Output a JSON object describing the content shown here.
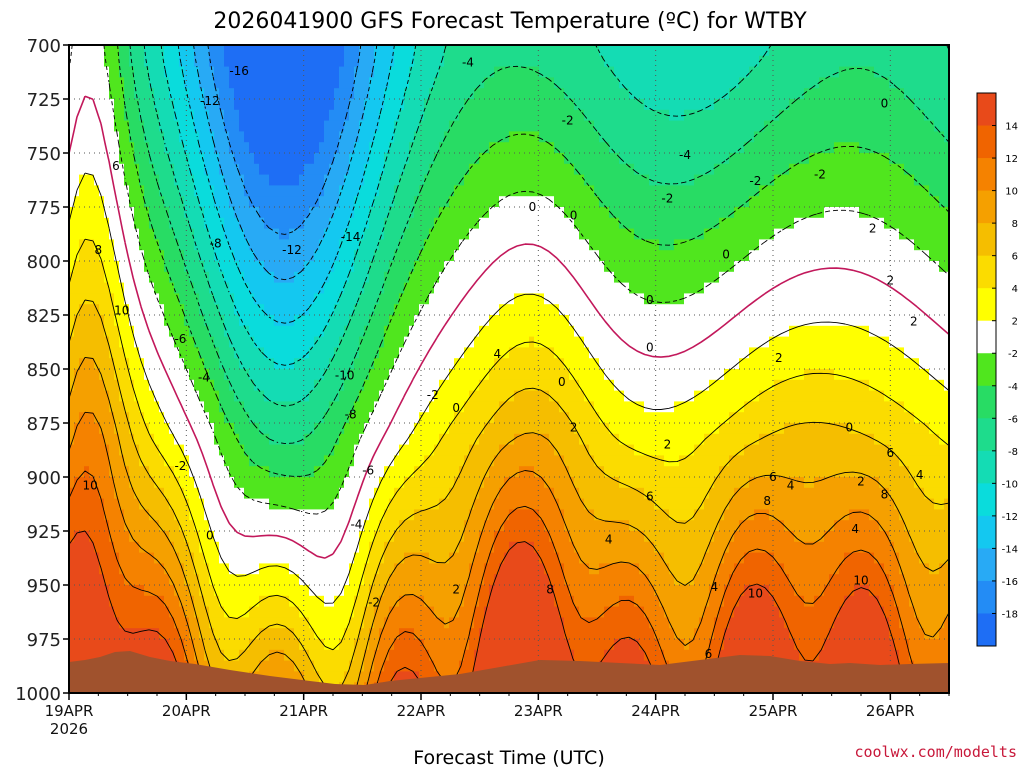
{
  "chart_data": {
    "type": "heatmap",
    "title": "2026041900 GFS Forecast Temperature (ºC) for WTBY",
    "xlabel": "Forecast Time (UTC)",
    "ylabel": "",
    "credit": "coolwx.com/modelts",
    "y_axis": {
      "reversed": true,
      "ylim": [
        1000,
        700
      ],
      "ticks": [
        "700",
        "725",
        "750",
        "775",
        "800",
        "825",
        "850",
        "875",
        "900",
        "925",
        "950",
        "975",
        "1000"
      ]
    },
    "x_axis": {
      "xlim": [
        0,
        7.5
      ],
      "units": "days since 2026-04-19 00Z",
      "ticks": [
        {
          "label": "19APR",
          "sub": "2026",
          "day": 0
        },
        {
          "label": "20APR",
          "sub": "",
          "day": 1
        },
        {
          "label": "21APR",
          "sub": "",
          "day": 2
        },
        {
          "label": "22APR",
          "sub": "",
          "day": 3
        },
        {
          "label": "23APR",
          "sub": "",
          "day": 4
        },
        {
          "label": "24APR",
          "sub": "",
          "day": 5
        },
        {
          "label": "25APR",
          "sub": "",
          "day": 6
        },
        {
          "label": "26APR",
          "sub": "",
          "day": 7
        }
      ]
    },
    "colorbar": {
      "bands": [
        {
          "lo": -20,
          "hi": -18,
          "color": "#1e6ef5"
        },
        {
          "lo": -18,
          "hi": -16,
          "color": "#238cf5"
        },
        {
          "lo": -16,
          "hi": -14,
          "color": "#28aaf5"
        },
        {
          "lo": -14,
          "hi": -12,
          "color": "#14c8f0"
        },
        {
          "lo": -12,
          "hi": -10,
          "color": "#0adcdc"
        },
        {
          "lo": -10,
          "hi": -8,
          "color": "#14dcb4"
        },
        {
          "lo": -8,
          "hi": -6,
          "color": "#1edc8c"
        },
        {
          "lo": -6,
          "hi": -4,
          "color": "#28dc64"
        },
        {
          "lo": -4,
          "hi": -2,
          "color": "#50e61e"
        },
        {
          "lo": -2,
          "hi": 2,
          "color": "#ffffff"
        },
        {
          "lo": 2,
          "hi": 4,
          "color": "#ffff00"
        },
        {
          "lo": 4,
          "hi": 6,
          "color": "#fbdc00"
        },
        {
          "lo": 6,
          "hi": 8,
          "color": "#f5be00"
        },
        {
          "lo": 8,
          "hi": 10,
          "color": "#f5a000"
        },
        {
          "lo": 10,
          "hi": 12,
          "color": "#f58200"
        },
        {
          "lo": 12,
          "hi": 14,
          "color": "#f06400"
        },
        {
          "lo": 14,
          "hi": 16,
          "color": "#e84a1a"
        }
      ],
      "tick_labels": [
        "-18",
        "-16",
        "-14",
        "-12",
        "-10",
        "-8",
        "-6",
        "-4",
        "-2",
        "2",
        "4",
        "6",
        "8",
        "10",
        "12",
        "14"
      ]
    },
    "contour_labels": [
      {
        "text": "-16",
        "day": 1.45,
        "p": 712
      },
      {
        "text": "-12",
        "day": 1.2,
        "p": 726
      },
      {
        "text": "-8",
        "day": 1.25,
        "p": 792
      },
      {
        "text": "-12",
        "day": 1.9,
        "p": 795
      },
      {
        "text": "-14",
        "day": 2.4,
        "p": 789
      },
      {
        "text": "-6",
        "day": 0.95,
        "p": 836
      },
      {
        "text": "-4",
        "day": 1.15,
        "p": 854
      },
      {
        "text": "-10",
        "day": 2.35,
        "p": 853
      },
      {
        "text": "-8",
        "day": 2.4,
        "p": 871
      },
      {
        "text": "-6",
        "day": 2.55,
        "p": 897
      },
      {
        "text": "-4",
        "day": 2.45,
        "p": 922
      },
      {
        "text": "-2",
        "day": 0.95,
        "p": 895
      },
      {
        "text": "0",
        "day": 1.2,
        "p": 927
      },
      {
        "text": "-2",
        "day": 2.6,
        "p": 958
      },
      {
        "text": "-2",
        "day": 3.1,
        "p": 862
      },
      {
        "text": "0",
        "day": 3.3,
        "p": 868
      },
      {
        "text": "-4",
        "day": 3.4,
        "p": 708
      },
      {
        "text": "-2",
        "day": 4.25,
        "p": 735
      },
      {
        "text": "0",
        "day": 3.95,
        "p": 775
      },
      {
        "text": "0",
        "day": 4.3,
        "p": 779
      },
      {
        "text": "4",
        "day": 3.65,
        "p": 843
      },
      {
        "text": "0",
        "day": 4.2,
        "p": 856
      },
      {
        "text": "2",
        "day": 4.3,
        "p": 877
      },
      {
        "text": "2",
        "day": 3.3,
        "p": 952
      },
      {
        "text": "-4",
        "day": 5.25,
        "p": 751
      },
      {
        "text": "-2",
        "day": 5.1,
        "p": 771
      },
      {
        "text": "-2",
        "day": 5.85,
        "p": 763
      },
      {
        "text": "-2",
        "day": 6.4,
        "p": 760
      },
      {
        "text": "0",
        "day": 5.6,
        "p": 797
      },
      {
        "text": "0",
        "day": 4.95,
        "p": 818
      },
      {
        "text": "0",
        "day": 4.95,
        "p": 840
      },
      {
        "text": "2",
        "day": 5.1,
        "p": 885
      },
      {
        "text": "4",
        "day": 4.6,
        "p": 929
      },
      {
        "text": "6",
        "day": 4.95,
        "p": 909
      },
      {
        "text": "8",
        "day": 4.1,
        "p": 952
      },
      {
        "text": "4",
        "day": 5.5,
        "p": 951
      },
      {
        "text": "6",
        "day": 5.45,
        "p": 982
      },
      {
        "text": "6",
        "day": 6.0,
        "p": 900
      },
      {
        "text": "4",
        "day": 6.15,
        "p": 904
      },
      {
        "text": "8",
        "day": 5.95,
        "p": 911
      },
      {
        "text": "10",
        "day": 5.85,
        "p": 954
      },
      {
        "text": "2",
        "day": 6.85,
        "p": 785
      },
      {
        "text": "0",
        "day": 6.95,
        "p": 727
      },
      {
        "text": "2",
        "day": 7.0,
        "p": 809
      },
      {
        "text": "2",
        "day": 7.2,
        "p": 828
      },
      {
        "text": "2",
        "day": 6.05,
        "p": 845
      },
      {
        "text": "0",
        "day": 6.65,
        "p": 877
      },
      {
        "text": "2",
        "day": 6.75,
        "p": 902
      },
      {
        "text": "4",
        "day": 6.7,
        "p": 924
      },
      {
        "text": "6",
        "day": 7.0,
        "p": 889
      },
      {
        "text": "4",
        "day": 7.25,
        "p": 899
      },
      {
        "text": "8",
        "day": 6.95,
        "p": 908
      },
      {
        "text": "10",
        "day": 6.75,
        "p": 948
      },
      {
        "text": "6",
        "day": 0.4,
        "p": 756
      },
      {
        "text": "8",
        "day": 0.25,
        "p": 795
      },
      {
        "text": "10",
        "day": 0.45,
        "p": 823
      },
      {
        "text": "10",
        "day": 0.18,
        "p": 904
      }
    ]
  }
}
